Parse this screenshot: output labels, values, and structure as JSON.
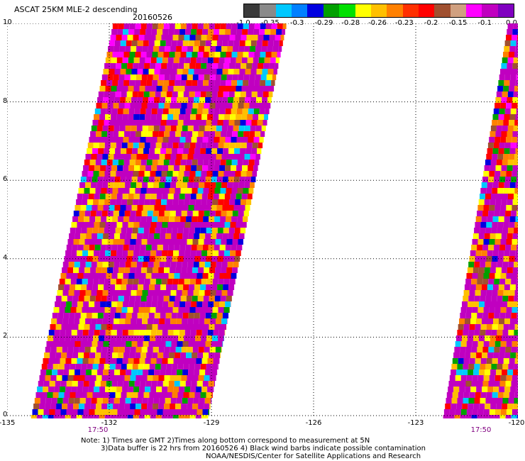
{
  "header": {
    "title": "ASCAT 25KM MLE-2 descending",
    "date": "20160526"
  },
  "colorbar": {
    "colors": [
      "#3a3a3a",
      "#8a8a8a",
      "#00c8ff",
      "#0080ff",
      "#0000e0",
      "#00a000",
      "#00e000",
      "#ffff00",
      "#ffc000",
      "#ff8000",
      "#ff3000",
      "#ff0000",
      "#a05030",
      "#d0a080",
      "#ff00ff",
      "#c000c0",
      "#8000c0"
    ],
    "labels": [
      "-1.0",
      "-0.35",
      "-0.3",
      "-0.29",
      "-0.28",
      "-0.26",
      "-0.23",
      "-0.2",
      "-0.15",
      "-0.1",
      "0.0"
    ]
  },
  "chart_data": {
    "type": "heatmap",
    "title": "ASCAT 25KM MLE-2 descending",
    "x_ticks": [
      "-135",
      "-132",
      "-129",
      "-126",
      "-123",
      "-120"
    ],
    "y_ticks": [
      "0",
      "2",
      "4",
      "6",
      "8",
      "10"
    ],
    "xlim": [
      -135,
      -120
    ],
    "ylim": [
      0,
      10
    ],
    "grid": true,
    "value_range": [
      -1.0,
      0.0
    ],
    "swaths": [
      {
        "time": "17:50",
        "lon_range_bottom": [
          -134.3,
          -129.1
        ],
        "lon_range_top": [
          -131.9,
          -126.8
        ]
      },
      {
        "time": "17:50",
        "lon_range_bottom": [
          -122.2,
          -120.0
        ],
        "lon_range_top": [
          -120.3,
          -120.0
        ]
      }
    ]
  },
  "time_labels": [
    "17:50",
    "17:50"
  ],
  "notes": {
    "line1": "Note: 1) Times are GMT 2)Times along bottom correspond to measurement at 5N",
    "line2": "3)Data buffer is 22 hrs from 20160526 4) Black wind barbs indicate possible contamination",
    "line3": "NOAA/NESDIS/Center for Satellite Applications and Research"
  }
}
